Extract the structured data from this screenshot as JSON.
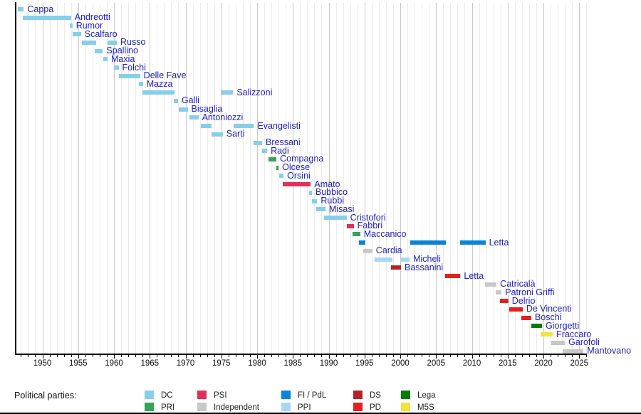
{
  "chart_data": {
    "type": "bar",
    "subtype": "gantt-timeline",
    "title": "",
    "xlabel": "",
    "ylabel": "",
    "x_axis": {
      "min": 1946,
      "max": 2027,
      "major_tick_step": 5,
      "minor_tick_step": 1,
      "tick_labels": [
        1950,
        1955,
        1960,
        1965,
        1970,
        1975,
        1980,
        1985,
        1990,
        1995,
        2000,
        2005,
        2010,
        2015,
        2020,
        2025
      ],
      "grid": "on"
    },
    "people": [
      {
        "name": "Cappa",
        "party": "DC",
        "terms": [
          [
            1946.55,
            1947.4
          ]
        ]
      },
      {
        "name": "Andreotti",
        "party": "DC",
        "terms": [
          [
            1947.3,
            1954.0
          ]
        ]
      },
      {
        "name": "Rumor",
        "party": "DC",
        "terms": [
          [
            1953.85,
            1954.2
          ]
        ]
      },
      {
        "name": "Scalfaro",
        "party": "DC",
        "terms": [
          [
            1954.2,
            1955.4
          ]
        ]
      },
      {
        "name": "Russo",
        "party": "DC",
        "terms": [
          [
            1955.5,
            1957.5
          ],
          [
            1959.1,
            1960.4
          ]
        ]
      },
      {
        "name": "Spallino",
        "party": "DC",
        "terms": [
          [
            1957.3,
            1958.45
          ]
        ]
      },
      {
        "name": "Maxia",
        "party": "DC",
        "terms": [
          [
            1958.55,
            1959.1
          ]
        ]
      },
      {
        "name": "Folchi",
        "party": "DC",
        "terms": [
          [
            1960.05,
            1960.65
          ]
        ]
      },
      {
        "name": "Delle Fave",
        "party": "DC",
        "terms": [
          [
            1960.65,
            1963.65
          ]
        ]
      },
      {
        "name": "Mazza",
        "party": "DC",
        "terms": [
          [
            1963.5,
            1964.05
          ]
        ]
      },
      {
        "name": "Salizzoni",
        "party": "DC",
        "terms": [
          [
            1963.95,
            1968.5
          ],
          [
            1974.9,
            1976.65
          ]
        ]
      },
      {
        "name": "Galli",
        "party": "DC",
        "terms": [
          [
            1968.4,
            1968.95
          ]
        ]
      },
      {
        "name": "Bisaglia",
        "party": "DC",
        "terms": [
          [
            1969.05,
            1970.3
          ]
        ]
      },
      {
        "name": "Antoniozzi",
        "party": "DC",
        "terms": [
          [
            1970.55,
            1971.8
          ]
        ]
      },
      {
        "name": "Evangelisti",
        "party": "DC",
        "terms": [
          [
            1972.1,
            1973.6
          ],
          [
            1976.75,
            1979.55
          ]
        ]
      },
      {
        "name": "Sarti",
        "party": "DC",
        "terms": [
          [
            1973.6,
            1975.2
          ]
        ]
      },
      {
        "name": "Bressani",
        "party": "DC",
        "terms": [
          [
            1979.55,
            1980.7
          ]
        ]
      },
      {
        "name": "Radi",
        "party": "DC",
        "terms": [
          [
            1980.7,
            1981.4
          ]
        ]
      },
      {
        "name": "Compagna",
        "party": "PRI",
        "terms": [
          [
            1981.55,
            1982.7
          ]
        ]
      },
      {
        "name": "Olcese",
        "party": "PRI",
        "terms": [
          [
            1982.7,
            1983.0
          ]
        ]
      },
      {
        "name": "Orsini",
        "party": "DC",
        "terms": [
          [
            1983.05,
            1983.7
          ]
        ]
      },
      {
        "name": "Amato",
        "party": "PSI",
        "terms": [
          [
            1983.55,
            1987.5
          ]
        ]
      },
      {
        "name": "Bubbico",
        "party": "DC",
        "terms": [
          [
            1987.3,
            1987.65
          ]
        ]
      },
      {
        "name": "Rubbi",
        "party": "DC",
        "terms": [
          [
            1987.7,
            1988.4
          ]
        ]
      },
      {
        "name": "Misasi",
        "party": "DC",
        "terms": [
          [
            1988.3,
            1989.55
          ]
        ]
      },
      {
        "name": "Cristofori",
        "party": "DC",
        "terms": [
          [
            1989.4,
            1992.5
          ]
        ]
      },
      {
        "name": "Fabbri",
        "party": "PSI",
        "terms": [
          [
            1992.55,
            1993.5
          ]
        ]
      },
      {
        "name": "Maccanico",
        "party": "PRI",
        "terms": [
          [
            1993.35,
            1994.4
          ]
        ]
      },
      {
        "name": "Letta",
        "party": "FI / PdL",
        "terms": [
          [
            1994.25,
            1995.15
          ],
          [
            2001.4,
            2006.35
          ],
          [
            2008.35,
            2011.9
          ]
        ]
      },
      {
        "name": "Cardia",
        "party": "Independent",
        "terms": [
          [
            1994.8,
            1996.1
          ]
        ]
      },
      {
        "name": "Micheli",
        "party": "PPI",
        "terms": [
          [
            1996.4,
            1998.95
          ],
          [
            2000.1,
            2001.3
          ]
        ]
      },
      {
        "name": "Bassanini",
        "party": "DS",
        "terms": [
          [
            1998.7,
            2000.1
          ]
        ]
      },
      {
        "name": "Letta",
        "party": "PD",
        "terms": [
          [
            2006.3,
            2008.4
          ]
        ]
      },
      {
        "name": "Catricalà",
        "party": "Independent",
        "terms": [
          [
            2011.85,
            2013.45
          ]
        ]
      },
      {
        "name": "Patroni Griffi",
        "party": "Independent",
        "terms": [
          [
            2013.3,
            2014.15
          ]
        ]
      },
      {
        "name": "Delrio",
        "party": "PD",
        "terms": [
          [
            2013.95,
            2015.1
          ]
        ]
      },
      {
        "name": "De Vincenti",
        "party": "PD",
        "terms": [
          [
            2015.25,
            2017.1
          ]
        ]
      },
      {
        "name": "Boschi",
        "party": "PD",
        "terms": [
          [
            2016.9,
            2018.3
          ]
        ]
      },
      {
        "name": "Giorgetti",
        "party": "Lega",
        "terms": [
          [
            2018.3,
            2019.8
          ]
        ]
      },
      {
        "name": "Fraccaro",
        "party": "M5S",
        "terms": [
          [
            2019.65,
            2021.3
          ]
        ]
      },
      {
        "name": "Garofoli",
        "party": "Independent",
        "terms": [
          [
            2021.05,
            2023.0
          ]
        ]
      },
      {
        "name": "Mantovano",
        "party": "Independent",
        "terms": [
          [
            2022.7,
            2025.6
          ]
        ]
      }
    ]
  },
  "party_colors": {
    "DC": "#87CEEB",
    "PRI": "#33A457",
    "PSI": "#E23058",
    "Independent": "#C8C8C8",
    "FI / PdL": "#0984DB",
    "PPI": "#A9D7F3",
    "DS": "#B22228",
    "PD": "#E4201C",
    "Lega": "#057D05",
    "M5S": "#F5E23F"
  },
  "legend": {
    "title": "Political parties:",
    "entries": [
      {
        "label": "DC"
      },
      {
        "label": "PRI"
      },
      {
        "label": "PSI"
      },
      {
        "label": "Independent"
      },
      {
        "label": "FI / PdL"
      },
      {
        "label": "PPI"
      },
      {
        "label": "DS"
      },
      {
        "label": "PD"
      },
      {
        "label": "Lega"
      },
      {
        "label": "M5S"
      }
    ]
  }
}
